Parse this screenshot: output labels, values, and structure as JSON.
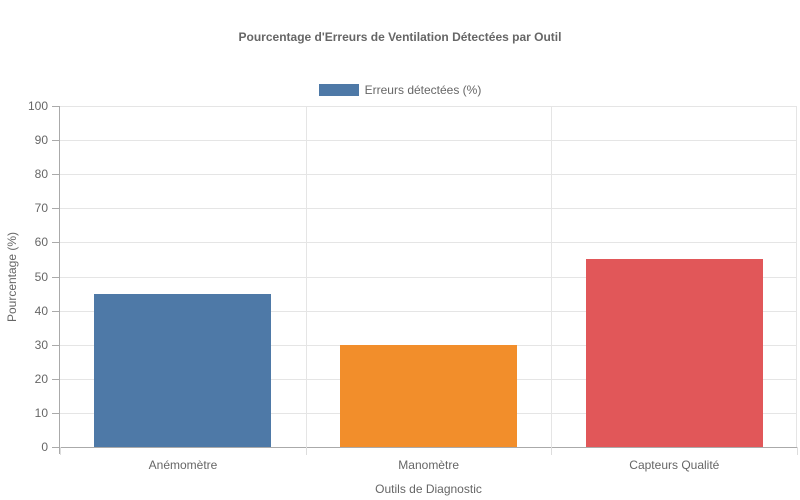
{
  "chart_data": {
    "type": "bar",
    "title": "Pourcentage d'Erreurs de Ventilation Détectées par Outil",
    "xlabel": "Outils de Diagnostic",
    "ylabel": "Pourcentage (%)",
    "categories": [
      "Anémomètre",
      "Manomètre",
      "Capteurs Qualité"
    ],
    "series": [
      {
        "name": "Erreurs détectées (%)",
        "values": [
          45,
          30,
          55
        ]
      }
    ],
    "bar_colors": [
      "#4e79a7",
      "#f28e2b",
      "#e15759"
    ],
    "ylim": [
      0,
      100
    ],
    "yticks": [
      0,
      10,
      20,
      30,
      40,
      50,
      60,
      70,
      80,
      90,
      100
    ],
    "grid": true,
    "legend_position": "top"
  },
  "legend": {
    "label": "Erreurs détectées (%)",
    "color": "#4e79a7"
  }
}
